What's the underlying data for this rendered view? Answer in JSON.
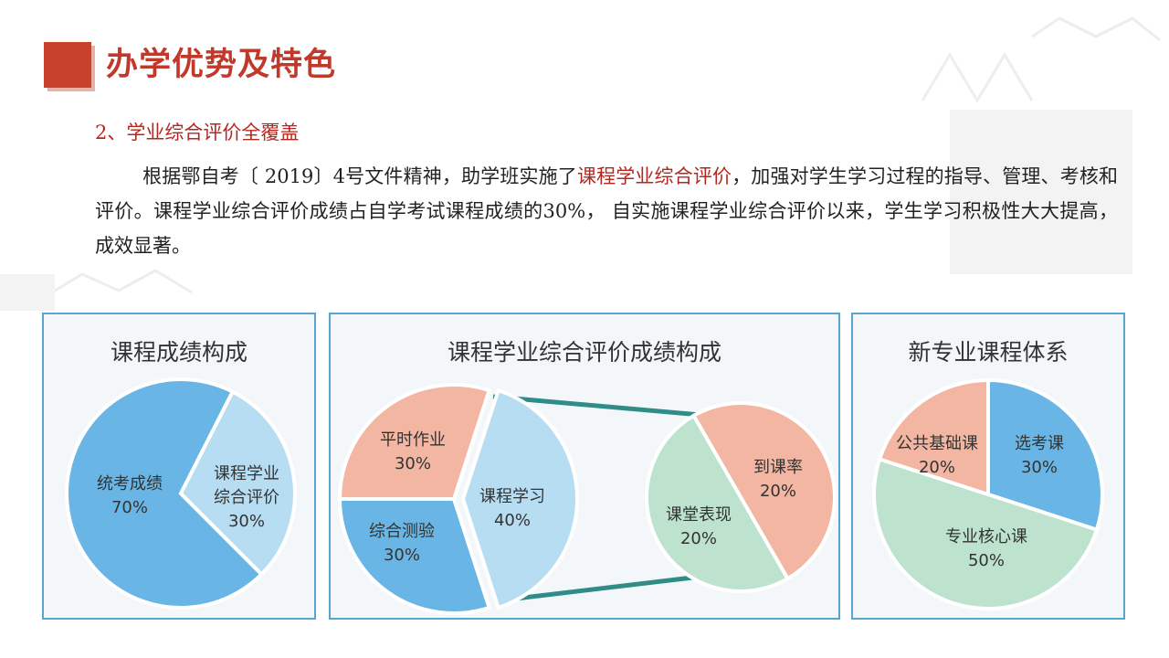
{
  "header": {
    "title": "办学优势及特色"
  },
  "section": {
    "heading": "2、学业综合评价全覆盖"
  },
  "paragraph": {
    "part1": "根据鄂自考〔 2019〕4号文件精神，助学班实施了",
    "highlight": "课程学业综合评价",
    "part2": "，加强对学生学习过程的指导、管理、考核和评价。课程学业综合评价成绩占自学考试课程成绩的30%， 自实施课程学业综合评价以来，学生学习积极性大大提高，成效显著。"
  },
  "colors": {
    "blue_dark": "#69b6e6",
    "blue_light": "#b7ddf3",
    "pink": "#f2b6a3",
    "green": "#bde3cf",
    "connector": "#2f8c86",
    "panel_border": "#58a6cf",
    "accent_red": "#c0392b"
  },
  "chart_data": [
    {
      "type": "pie",
      "title": "课程成绩构成",
      "slices": [
        {
          "label_lines": [
            "统考成绩",
            "70%"
          ],
          "value": 70,
          "color": "#69b6e6"
        },
        {
          "label_lines": [
            "课程学业",
            "综合评价",
            "30%"
          ],
          "value": 30,
          "color": "#b7ddf3"
        }
      ]
    },
    {
      "type": "pie",
      "title": "课程学业综合评价成绩构成",
      "slices": [
        {
          "label_lines": [
            "平时作业",
            "30%"
          ],
          "value": 30,
          "color": "#f2b6a3"
        },
        {
          "label_lines": [
            "综合测验",
            "30%"
          ],
          "value": 30,
          "color": "#69b6e6"
        },
        {
          "label_lines": [
            "课程学习",
            "40%"
          ],
          "value": 40,
          "color": "#b7ddf3"
        }
      ],
      "breakdown": {
        "of": "课程学习",
        "slices": [
          {
            "label_lines": [
              "到课率",
              "20%"
            ],
            "value": 20,
            "color": "#f2b6a3"
          },
          {
            "label_lines": [
              "课堂表现",
              "20%"
            ],
            "value": 20,
            "color": "#bde3cf"
          }
        ]
      }
    },
    {
      "type": "pie",
      "title": "新专业课程体系",
      "slices": [
        {
          "label_lines": [
            "选考课",
            "30%"
          ],
          "value": 30,
          "color": "#69b6e6"
        },
        {
          "label_lines": [
            "专业核心课",
            "50%"
          ],
          "value": 50,
          "color": "#bde3cf"
        },
        {
          "label_lines": [
            "公共基础课",
            "20%"
          ],
          "value": 20,
          "color": "#f2b6a3"
        }
      ]
    }
  ]
}
